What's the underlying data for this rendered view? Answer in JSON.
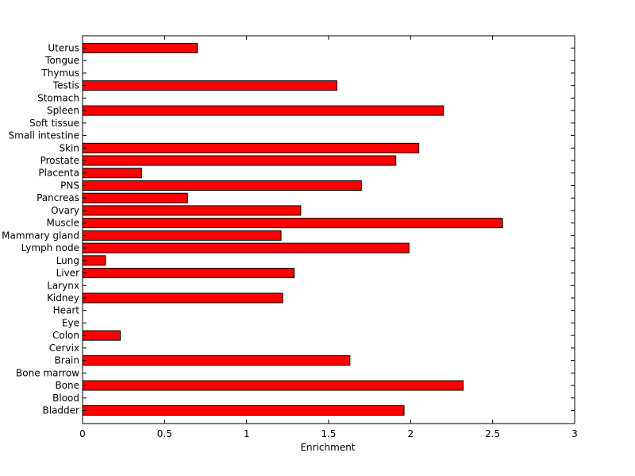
{
  "chart_data": {
    "type": "bar",
    "orientation": "horizontal",
    "categories": [
      "Uterus",
      "Tongue",
      "Thymus",
      "Testis",
      "Stomach",
      "Spleen",
      "Soft tissue",
      "Small intestine",
      "Skin",
      "Prostate",
      "Placenta",
      "PNS",
      "Pancreas",
      "Ovary",
      "Muscle",
      "Mammary gland",
      "Lymph node",
      "Lung",
      "Liver",
      "Larynx",
      "Kidney",
      "Heart",
      "Eye",
      "Colon",
      "Cervix",
      "Brain",
      "Bone marrow",
      "Bone",
      "Blood",
      "Bladder"
    ],
    "values": [
      0.7,
      0,
      0,
      1.55,
      0,
      2.2,
      0,
      0,
      2.05,
      1.91,
      0.36,
      1.7,
      0.64,
      1.33,
      2.56,
      1.21,
      1.99,
      0.14,
      1.29,
      0,
      1.22,
      0,
      0,
      0.23,
      0,
      1.63,
      0,
      2.32,
      0,
      1.96
    ],
    "xlabel": "Enrichment",
    "xlim": [
      0,
      3
    ],
    "xticks": [
      "0",
      "0.5",
      "1",
      "1.5",
      "2",
      "2.5",
      "3"
    ],
    "grid": false,
    "bar_color": "#ff0000",
    "edge_color": "#000000"
  }
}
